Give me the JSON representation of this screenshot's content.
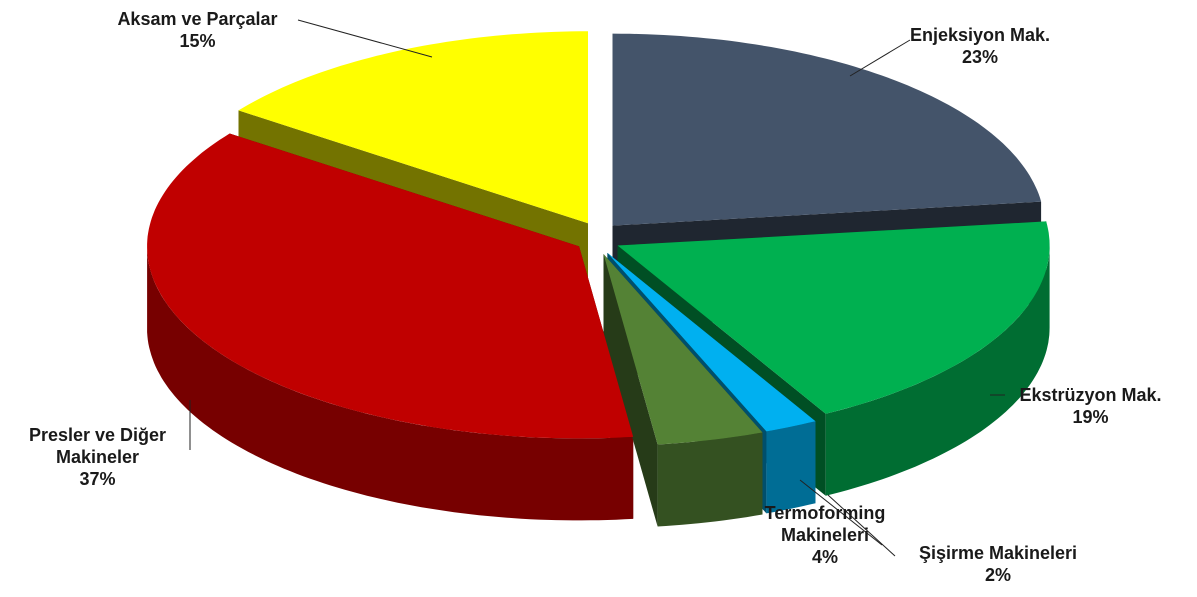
{
  "chart_data": {
    "type": "pie3d",
    "categories": [
      "Enjeksiyon Mak.",
      "Ekstrüzyon Mak.",
      "Şişirme Makineleri",
      "Termoforming Makineleri",
      "Presler ve Diğer Makineler",
      "Aksam ve Parçalar"
    ],
    "values": [
      23,
      19,
      2,
      4,
      37,
      15
    ],
    "value_labels": [
      "23%",
      "19%",
      "2%",
      "4%",
      "37%",
      "15%"
    ],
    "colors": [
      "#44546a",
      "#00b050",
      "#00b0f0",
      "#548235",
      "#c00000",
      "#ffff00"
    ]
  }
}
